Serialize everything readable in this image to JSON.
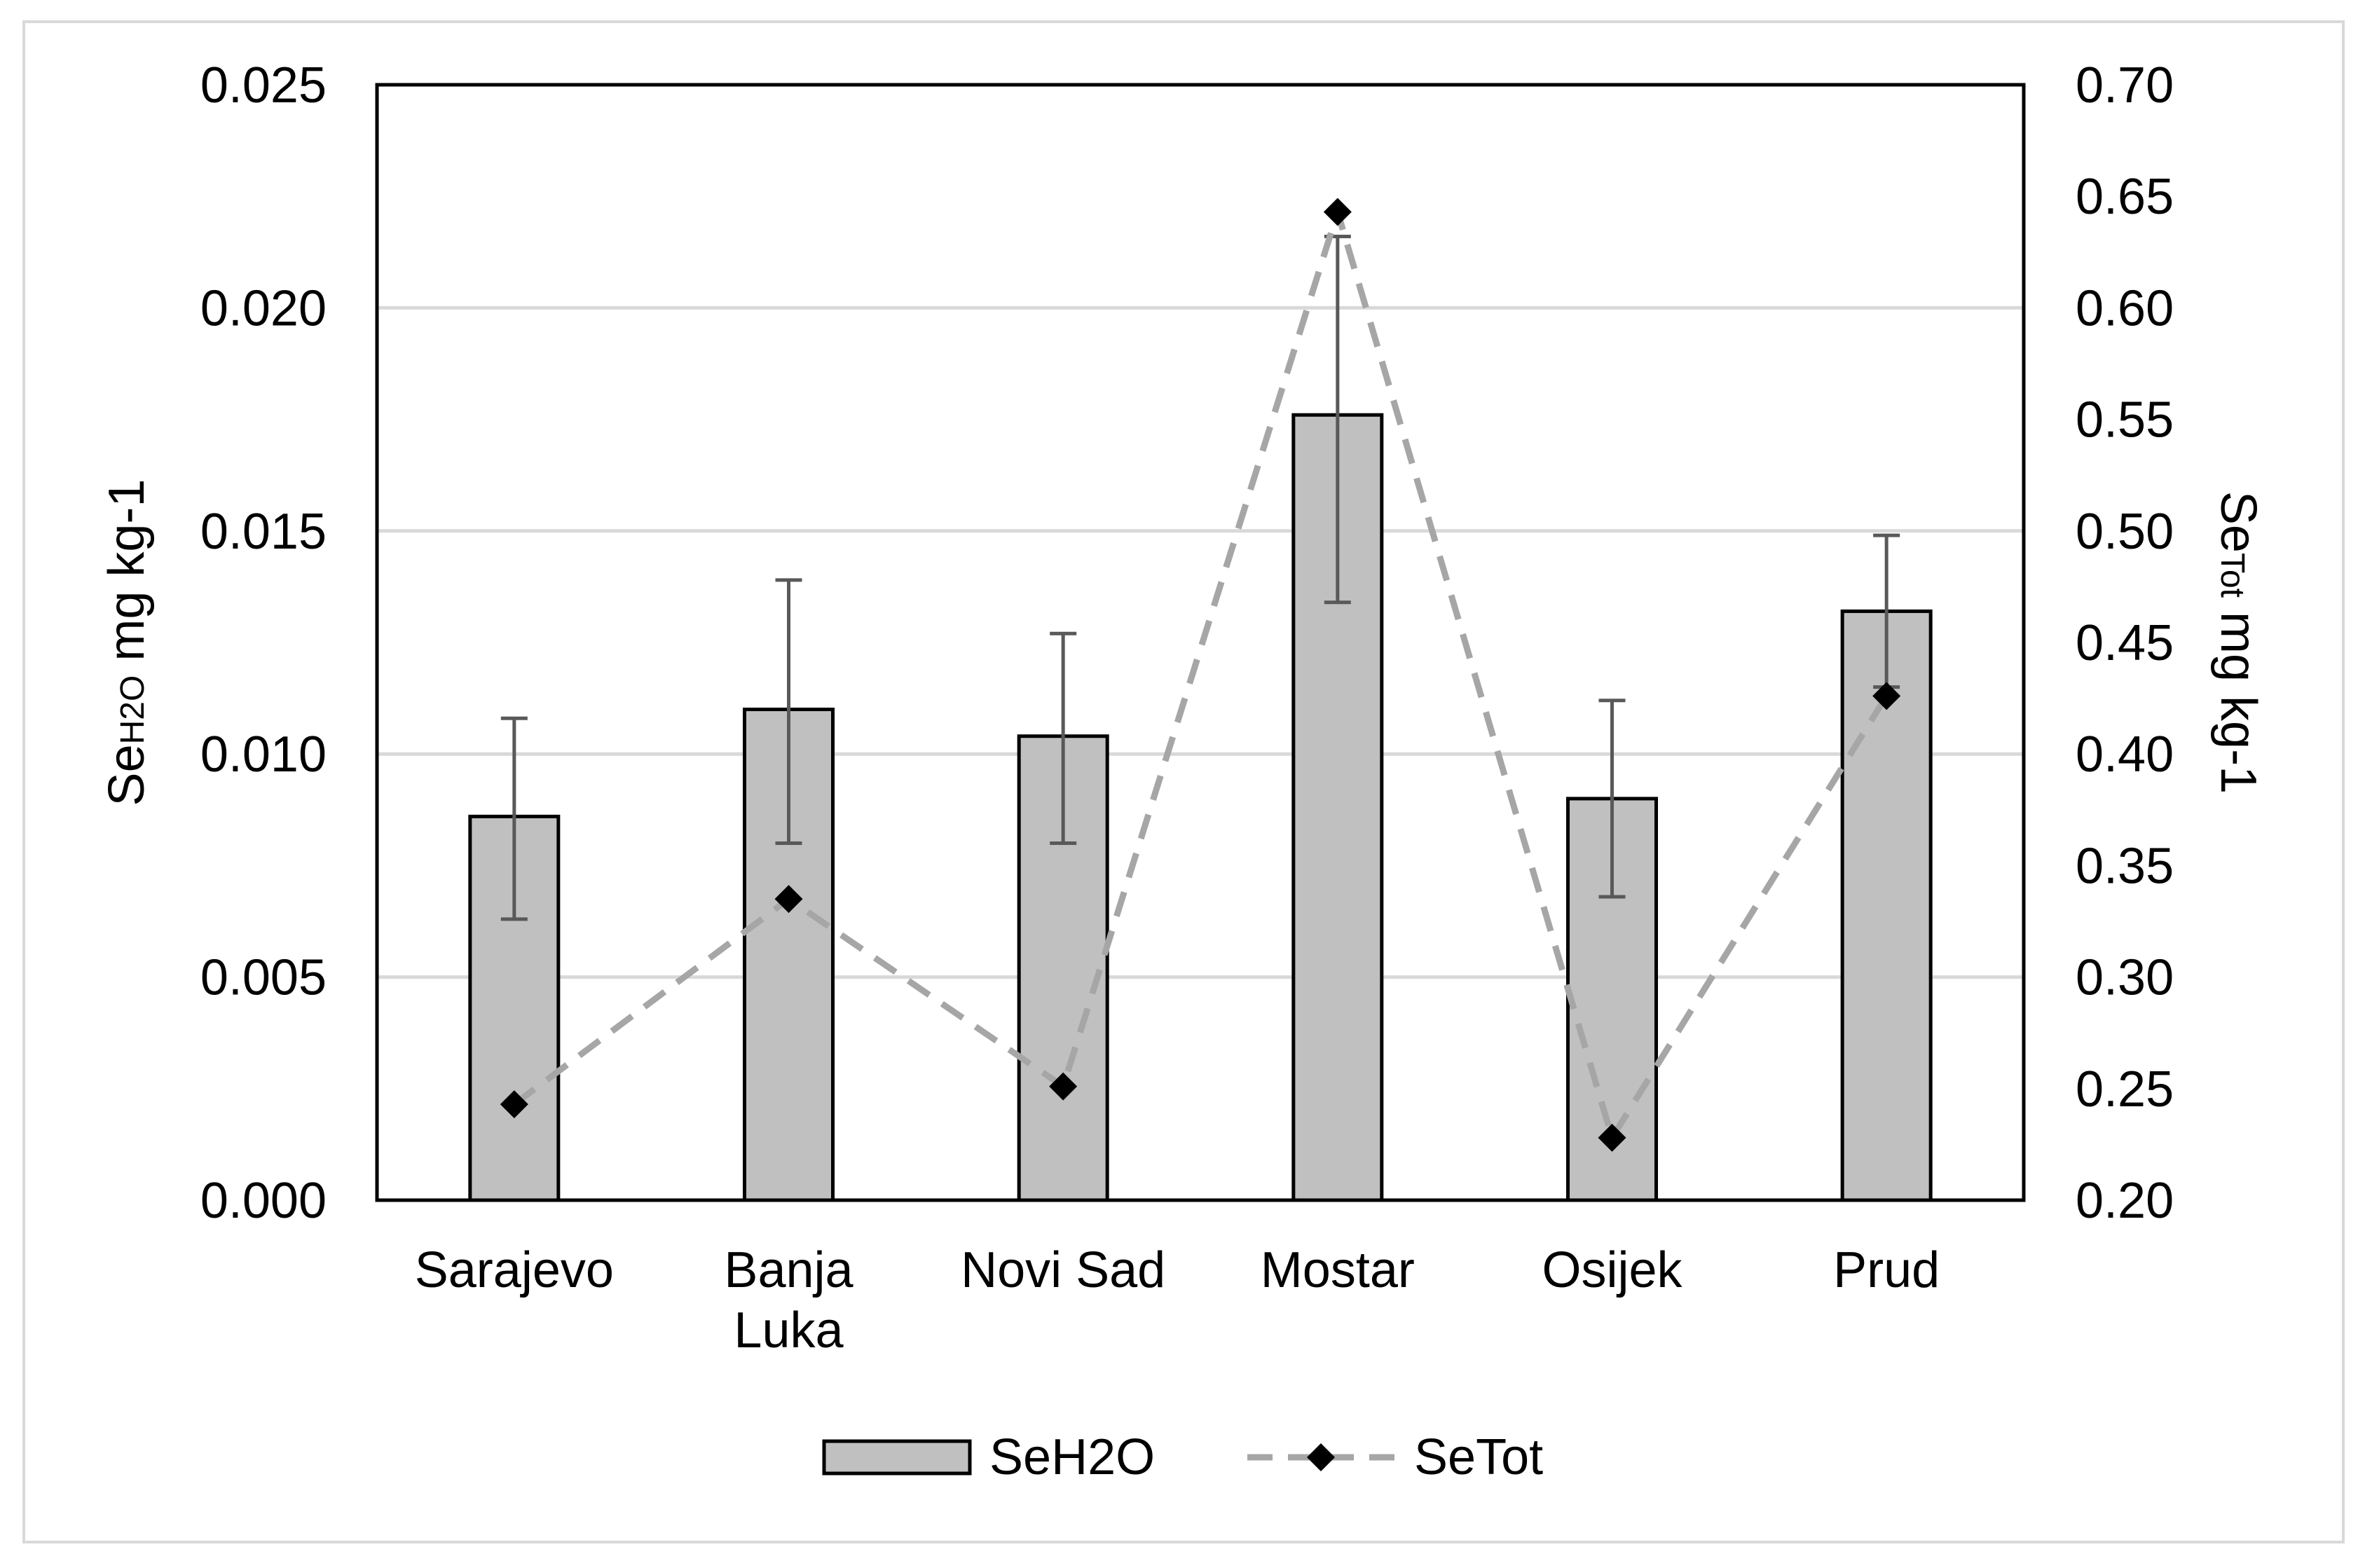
{
  "chart_data": {
    "type": "bar",
    "title": "",
    "categories": [
      {
        "lines": [
          "Sarajevo"
        ]
      },
      {
        "lines": [
          "Banja",
          "Luka"
        ]
      },
      {
        "lines": [
          "Novi Sad"
        ]
      },
      {
        "lines": [
          "Mostar"
        ]
      },
      {
        "lines": [
          "Osijek"
        ]
      },
      {
        "lines": [
          "Prud"
        ]
      }
    ],
    "category_names": [
      "Sarajevo",
      "Banja Luka",
      "Novi Sad",
      "Mostar",
      "Osijek",
      "Prud"
    ],
    "y_left": {
      "label_main": "Se",
      "label_sub": "H2O",
      "label_tail": " mg kg-1",
      "ylim": [
        0,
        0.025
      ],
      "ticks": [
        "0.000",
        "0.005",
        "0.010",
        "0.015",
        "0.020",
        "0.025"
      ]
    },
    "y_right": {
      "label_main": "Se",
      "label_sub": "Tot",
      "label_tail": " mg kg-1",
      "ylim": [
        0.2,
        0.7
      ],
      "ticks": [
        "0.20",
        "0.25",
        "0.30",
        "0.35",
        "0.40",
        "0.45",
        "0.50",
        "0.55",
        "0.60",
        "0.65",
        "0.70"
      ]
    },
    "grid": true,
    "legend_position": "bottom-center",
    "series": [
      {
        "name": "SeH2O",
        "kind": "bar",
        "axis": "left",
        "color": "#c0c0c0",
        "edge_color": "#000000",
        "values": [
          0.0086,
          0.011,
          0.0104,
          0.0176,
          0.009,
          0.0132
        ],
        "error_low": [
          0.0063,
          0.008,
          0.008,
          0.0134,
          0.0068,
          0.0115
        ],
        "error_high": [
          0.0108,
          0.0139,
          0.0127,
          0.0216,
          0.0112,
          0.0149
        ]
      },
      {
        "name": "SeTot",
        "kind": "line",
        "axis": "right",
        "line_color": "#a6a6a6",
        "marker_color": "#000000",
        "marker": "diamond",
        "dashed": true,
        "values": [
          0.243,
          0.335,
          0.251,
          0.643,
          0.228,
          0.426
        ]
      }
    ]
  }
}
